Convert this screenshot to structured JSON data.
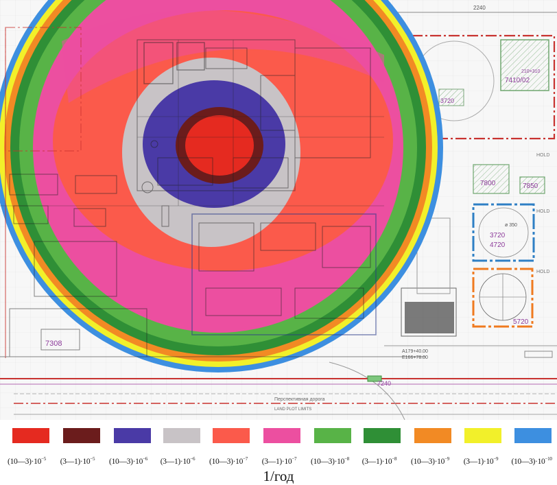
{
  "map": {
    "labels": {
      "top_dim": "2240",
      "bldg_7410": "7410/02",
      "bldg_7410_sub": "210×310",
      "bldg_3720_top": "3720",
      "hold_top": "HOLD",
      "bldg_7800": "7800",
      "bldg_7850": "7850",
      "hold_mid": "HOLD",
      "diam": "ø 350",
      "bldg_3720": "3720",
      "bldg_4720": "4720",
      "hold_right": "HOLD",
      "bldg_5720": "5720",
      "bldg_7308": "7308",
      "coord_a": "A179+40.00",
      "coord_b": "E166+78.00",
      "bldg_7240": "7240",
      "land_plot": "LAND PLOT LIMITS",
      "road_label": "Перспективная дорога"
    }
  },
  "legend": {
    "unit": "1/год",
    "items": [
      {
        "range": "(10—3)·10",
        "exp": "−5",
        "color": "#e52a20"
      },
      {
        "range": "(3—1)·10",
        "exp": "−5",
        "color": "#6b1c1c"
      },
      {
        "range": "(10—3)·10",
        "exp": "−6",
        "color": "#4a3aa6"
      },
      {
        "range": "(3—1)·10",
        "exp": "−6",
        "color": "#c8c3c6"
      },
      {
        "range": "(10—3)·10",
        "exp": "−7",
        "color": "#fb5a4b"
      },
      {
        "range": "(3—1)·10",
        "exp": "−7",
        "color": "#ec4fa0"
      },
      {
        "range": "(10—3)·10",
        "exp": "−8",
        "color": "#58b347"
      },
      {
        "range": "(3—1)·10",
        "exp": "−8",
        "color": "#2f8f36"
      },
      {
        "range": "(10—3)·10",
        "exp": "−9",
        "color": "#f28a24"
      },
      {
        "range": "(3—1)·10",
        "exp": "−9",
        "color": "#f2f02a"
      },
      {
        "range": "(10—3)·10",
        "exp": "−10",
        "color": "#3d8fe0"
      }
    ]
  }
}
